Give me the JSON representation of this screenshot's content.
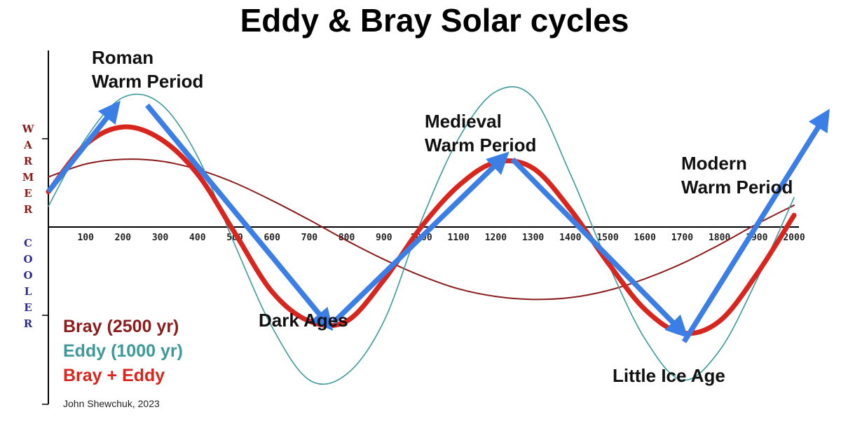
{
  "chart_data": {
    "type": "line",
    "title": "Eddy & Bray Solar cycles",
    "xlim": [
      0,
      2000
    ],
    "ylim": [
      -3,
      3
    ],
    "x_ticks": [
      100,
      200,
      300,
      400,
      500,
      600,
      700,
      800,
      900,
      1000,
      1100,
      1200,
      1300,
      1400,
      1500,
      1600,
      1700,
      1800,
      1900,
      2000
    ],
    "y_label_warm": "WARMER",
    "y_label_cool": "COOLER",
    "series": [
      {
        "name": "Bray  (2500 yr)",
        "color": "#8b1c1c",
        "x": [
          0,
          100,
          200,
          300,
          400,
          500,
          600,
          700,
          800,
          900,
          1000,
          1100,
          1200,
          1300,
          1400,
          1500,
          1600,
          1700,
          1800,
          1900,
          2000
        ],
        "y": [
          0.85,
          1.07,
          1.15,
          1.12,
          0.98,
          0.75,
          0.45,
          0.12,
          -0.23,
          -0.55,
          -0.83,
          -1.05,
          -1.18,
          -1.23,
          -1.2,
          -1.08,
          -0.88,
          -0.62,
          -0.3,
          0.05,
          0.37
        ]
      },
      {
        "name": "Eddy (1000 yr)",
        "color": "#3e9a9a",
        "x": [
          0,
          100,
          200,
          300,
          400,
          500,
          600,
          700,
          800,
          900,
          1000,
          1100,
          1200,
          1300,
          1400,
          1500,
          1600,
          1700,
          1800,
          1900,
          2000
        ],
        "y": [
          0.35,
          1.5,
          2.2,
          2.1,
          1.2,
          -0.3,
          -1.7,
          -2.6,
          -2.5,
          -1.6,
          0.1,
          1.5,
          2.3,
          2.2,
          0.9,
          -0.6,
          -1.9,
          -2.6,
          -2.1,
          -0.9,
          0.5
        ]
      },
      {
        "name": "Bray + Eddy",
        "color": "#d8261e",
        "x": [
          0,
          100,
          200,
          300,
          400,
          500,
          600,
          700,
          800,
          900,
          1000,
          1100,
          1200,
          1300,
          1400,
          1500,
          1600,
          1700,
          1800,
          1900,
          2000
        ],
        "y": [
          0.6,
          1.4,
          1.7,
          1.5,
          0.9,
          -0.1,
          -1.1,
          -1.6,
          -1.6,
          -0.9,
          0.0,
          0.7,
          1.1,
          1.0,
          0.3,
          -0.6,
          -1.4,
          -1.8,
          -1.6,
          -0.8,
          0.2
        ]
      }
    ],
    "arrows": [
      {
        "from": [
          0,
          0.6
        ],
        "to": [
          175,
          2.0
        ]
      },
      {
        "from": [
          265,
          2.07
        ],
        "to": [
          745,
          -1.62
        ]
      },
      {
        "from": [
          765,
          -1.62
        ],
        "to": [
          1215,
          1.15
        ]
      },
      {
        "from": [
          1245,
          1.15
        ],
        "to": [
          1695,
          -1.75
        ]
      },
      {
        "from": [
          1705,
          -1.95
        ],
        "to": [
          2080,
          1.85
        ]
      }
    ],
    "annotations": [
      {
        "lines": [
          "Roman",
          "Warm Period"
        ]
      },
      {
        "lines": [
          "Medieval",
          "Warm Period"
        ]
      },
      {
        "lines": [
          "Modern",
          "Warm Period"
        ]
      },
      {
        "lines": [
          "Dark Ages"
        ]
      },
      {
        "lines": [
          "Little Ice Age"
        ]
      }
    ],
    "legend": [
      {
        "text": "Bray  (2500 yr)",
        "color": "#8b1c1c"
      },
      {
        "text": "Eddy (1000 yr)",
        "color": "#3e9a9a"
      },
      {
        "text": "Bray + Eddy",
        "color": "#d8261e"
      }
    ],
    "credit": "John Shewchuk, 2023",
    "colors": {
      "arrow": "#3b7fe6",
      "warm_label": "#8b1c1c",
      "cool_label": "#2d2d8f",
      "axis": "#000000"
    }
  }
}
